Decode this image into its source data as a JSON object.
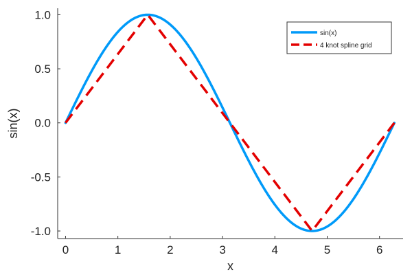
{
  "chart_data": {
    "type": "line",
    "xlabel": "x",
    "ylabel": "sin(x)",
    "xlim": [
      -0.15,
      6.45
    ],
    "ylim": [
      -1.07,
      1.06
    ],
    "xticks": [
      0,
      1,
      2,
      3,
      4,
      5,
      6
    ],
    "xtick_labels": [
      "0",
      "1",
      "2",
      "3",
      "4",
      "5",
      "6"
    ],
    "yticks": [
      -1.0,
      -0.5,
      0.0,
      0.5,
      1.0
    ],
    "ytick_labels": [
      "-1.0",
      "-0.5",
      "0.0",
      "0.5",
      "1.0"
    ],
    "grid": false,
    "legend_position": "top-right",
    "series": [
      {
        "name": "sin(x)",
        "style": "solid",
        "color": "#009af9",
        "function": "sin",
        "x_range": [
          0,
          6.283
        ]
      },
      {
        "name": "4 knot spline grid",
        "style": "dashed",
        "color": "#e30000",
        "x": [
          0,
          1.571,
          3.142,
          4.712,
          6.283
        ],
        "y": [
          0,
          1,
          0,
          -1,
          0
        ]
      }
    ]
  }
}
